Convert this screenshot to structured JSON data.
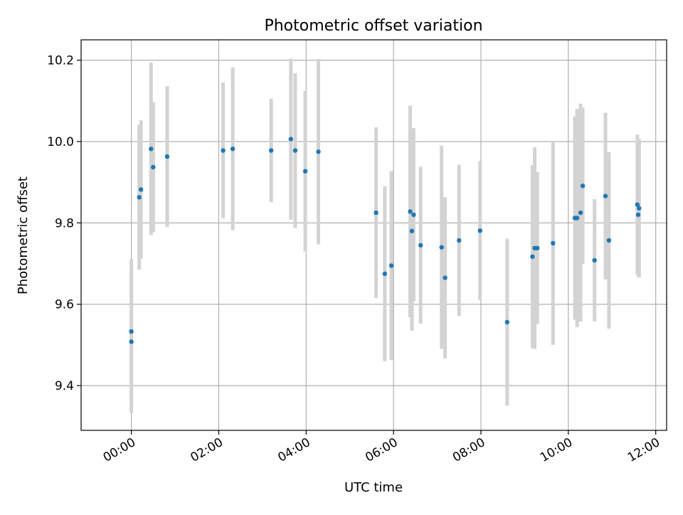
{
  "chart_data": {
    "type": "scatter",
    "title": "Photometric offset variation",
    "xlabel": "UTC time",
    "ylabel": "Photometric offset",
    "xlim_hours": [
      -1.15,
      12.25
    ],
    "ylim": [
      9.29,
      10.25
    ],
    "x_ticks": [
      {
        "value": 0,
        "label": "00:00"
      },
      {
        "value": 2,
        "label": "02:00"
      },
      {
        "value": 4,
        "label": "04:00"
      },
      {
        "value": 6,
        "label": "06:00"
      },
      {
        "value": 8,
        "label": "08:00"
      },
      {
        "value": 10,
        "label": "10:00"
      },
      {
        "value": 12,
        "label": "12:00"
      }
    ],
    "y_ticks": [
      {
        "value": 9.4,
        "label": "9.4"
      },
      {
        "value": 9.6,
        "label": "9.6"
      },
      {
        "value": 9.8,
        "label": "9.8"
      },
      {
        "value": 10.0,
        "label": "10.0"
      },
      {
        "value": 10.2,
        "label": "10.2"
      }
    ],
    "grid": true,
    "colors": {
      "points": "#1f77b4",
      "errorbars": "#d3d3d3",
      "grid": "#b0b0b0"
    },
    "points": [
      {
        "x": 0.0,
        "y": 9.533,
        "err": 0.178
      },
      {
        "x": 0.0,
        "y": 9.508,
        "err": 0.175
      },
      {
        "x": 0.18,
        "y": 9.863,
        "err": 0.178
      },
      {
        "x": 0.22,
        "y": 9.882,
        "err": 0.17
      },
      {
        "x": 0.45,
        "y": 9.982,
        "err": 0.212
      },
      {
        "x": 0.5,
        "y": 9.937,
        "err": 0.16
      },
      {
        "x": 0.82,
        "y": 9.963,
        "err": 0.173
      },
      {
        "x": 2.1,
        "y": 9.978,
        "err": 0.167
      },
      {
        "x": 2.32,
        "y": 9.982,
        "err": 0.2
      },
      {
        "x": 3.2,
        "y": 9.978,
        "err": 0.127
      },
      {
        "x": 3.65,
        "y": 10.006,
        "err": 0.198
      },
      {
        "x": 3.75,
        "y": 9.978,
        "err": 0.19
      },
      {
        "x": 3.98,
        "y": 9.927,
        "err": 0.197
      },
      {
        "x": 4.28,
        "y": 9.975,
        "err": 0.228
      },
      {
        "x": 5.6,
        "y": 9.825,
        "err": 0.21
      },
      {
        "x": 5.8,
        "y": 9.675,
        "err": 0.215
      },
      {
        "x": 5.95,
        "y": 9.695,
        "err": 0.232
      },
      {
        "x": 6.38,
        "y": 9.828,
        "err": 0.26
      },
      {
        "x": 6.42,
        "y": 9.78,
        "err": 0.245
      },
      {
        "x": 6.46,
        "y": 9.82,
        "err": 0.213
      },
      {
        "x": 6.62,
        "y": 9.745,
        "err": 0.193
      },
      {
        "x": 7.1,
        "y": 9.74,
        "err": 0.25
      },
      {
        "x": 7.18,
        "y": 9.665,
        "err": 0.198
      },
      {
        "x": 7.5,
        "y": 9.757,
        "err": 0.186
      },
      {
        "x": 7.98,
        "y": 9.781,
        "err": 0.171
      },
      {
        "x": 8.6,
        "y": 9.556,
        "err": 0.205
      },
      {
        "x": 9.18,
        "y": 9.717,
        "err": 0.225
      },
      {
        "x": 9.23,
        "y": 9.738,
        "err": 0.248
      },
      {
        "x": 9.29,
        "y": 9.738,
        "err": 0.187
      },
      {
        "x": 9.65,
        "y": 9.75,
        "err": 0.25
      },
      {
        "x": 10.15,
        "y": 9.812,
        "err": 0.25
      },
      {
        "x": 10.2,
        "y": 9.812,
        "err": 0.268
      },
      {
        "x": 10.28,
        "y": 9.825,
        "err": 0.268
      },
      {
        "x": 10.33,
        "y": 9.891,
        "err": 0.192
      },
      {
        "x": 10.6,
        "y": 9.708,
        "err": 0.15
      },
      {
        "x": 10.85,
        "y": 9.866,
        "err": 0.205
      },
      {
        "x": 10.93,
        "y": 9.757,
        "err": 0.217
      },
      {
        "x": 11.58,
        "y": 9.845,
        "err": 0.172
      },
      {
        "x": 11.62,
        "y": 9.836,
        "err": 0.17
      },
      {
        "x": 11.6,
        "y": 9.82,
        "err": 0.15
      }
    ]
  }
}
